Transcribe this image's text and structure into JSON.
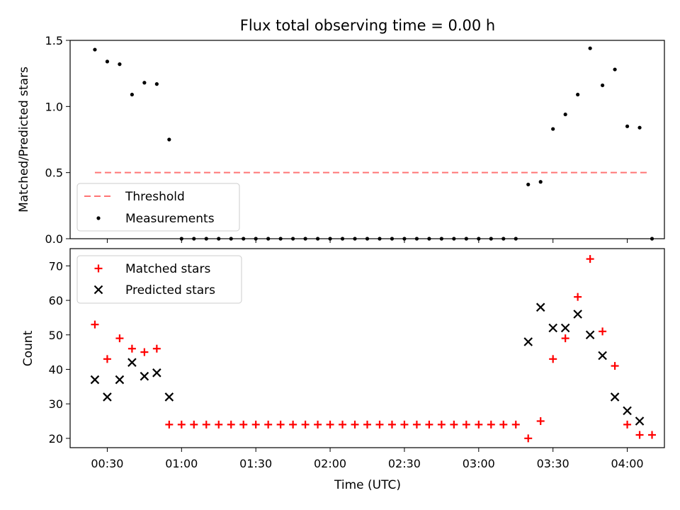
{
  "chart_data": [
    {
      "type": "scatter",
      "title": "Flux total observing time = 0.00 h",
      "xlabel": "",
      "ylabel": "Matched/Predicted stars",
      "ylim": [
        0,
        1.5
      ],
      "yticks": [
        "0.0",
        "0.5",
        "1.0",
        "1.5"
      ],
      "xlim": [
        "00:15",
        "04:15"
      ],
      "legend_position": "lower-left",
      "threshold": {
        "name": "Threshold",
        "value": 0.5,
        "x_start": "00:25",
        "x_end": "04:08",
        "color": "#ff7575",
        "style": "dashed"
      },
      "series": [
        {
          "name": "Measurements",
          "color": "#000000",
          "marker": "dot",
          "points": [
            [
              "00:25",
              1.43
            ],
            [
              "00:30",
              1.34
            ],
            [
              "00:35",
              1.32
            ],
            [
              "00:40",
              1.09
            ],
            [
              "00:45",
              1.18
            ],
            [
              "00:50",
              1.17
            ],
            [
              "00:55",
              0.75
            ],
            [
              "00:60",
              0.0
            ],
            [
              "01:05",
              0.0
            ],
            [
              "01:10",
              0.0
            ],
            [
              "01:15",
              0.0
            ],
            [
              "01:20",
              0.0
            ],
            [
              "01:25",
              0.0
            ],
            [
              "01:30",
              0.0
            ],
            [
              "01:35",
              0.0
            ],
            [
              "01:40",
              0.0
            ],
            [
              "01:45",
              0.0
            ],
            [
              "01:50",
              0.0
            ],
            [
              "01:55",
              0.0
            ],
            [
              "02:00",
              0.0
            ],
            [
              "02:05",
              0.0
            ],
            [
              "02:10",
              0.0
            ],
            [
              "02:15",
              0.0
            ],
            [
              "02:20",
              0.0
            ],
            [
              "02:25",
              0.0
            ],
            [
              "02:30",
              0.0
            ],
            [
              "02:35",
              0.0
            ],
            [
              "02:40",
              0.0
            ],
            [
              "02:45",
              0.0
            ],
            [
              "02:50",
              0.0
            ],
            [
              "02:55",
              0.0
            ],
            [
              "03:00",
              0.0
            ],
            [
              "03:05",
              0.0
            ],
            [
              "03:10",
              0.0
            ],
            [
              "03:15",
              0.0
            ],
            [
              "03:20",
              0.41
            ],
            [
              "03:25",
              0.43
            ],
            [
              "03:30",
              0.83
            ],
            [
              "03:35",
              0.94
            ],
            [
              "03:40",
              1.09
            ],
            [
              "03:45",
              1.44
            ],
            [
              "03:50",
              1.16
            ],
            [
              "03:55",
              1.28
            ],
            [
              "04:00",
              0.85
            ],
            [
              "04:05",
              0.84
            ],
            [
              "04:10",
              0.0
            ]
          ]
        }
      ]
    },
    {
      "type": "scatter",
      "title": "",
      "xlabel": "Time (UTC)",
      "ylabel": "Count",
      "ylim": [
        17.3,
        75
      ],
      "yticks": [
        "20",
        "30",
        "40",
        "50",
        "60",
        "70"
      ],
      "xlim": [
        "00:15",
        "04:15"
      ],
      "xticks": [
        "00:30",
        "01:00",
        "01:30",
        "02:00",
        "02:30",
        "03:00",
        "03:30",
        "04:00"
      ],
      "legend_position": "upper-left",
      "series": [
        {
          "name": "Matched stars",
          "color": "#ff0000",
          "marker": "plus",
          "points": [
            [
              "00:25",
              53
            ],
            [
              "00:30",
              43
            ],
            [
              "00:35",
              49
            ],
            [
              "00:40",
              46
            ],
            [
              "00:45",
              45
            ],
            [
              "00:50",
              46
            ],
            [
              "00:55",
              24
            ],
            [
              "01:00",
              24
            ],
            [
              "01:05",
              24
            ],
            [
              "01:10",
              24
            ],
            [
              "01:15",
              24
            ],
            [
              "01:20",
              24
            ],
            [
              "01:25",
              24
            ],
            [
              "01:30",
              24
            ],
            [
              "01:35",
              24
            ],
            [
              "01:40",
              24
            ],
            [
              "01:45",
              24
            ],
            [
              "01:50",
              24
            ],
            [
              "01:55",
              24
            ],
            [
              "02:00",
              24
            ],
            [
              "02:05",
              24
            ],
            [
              "02:10",
              24
            ],
            [
              "02:15",
              24
            ],
            [
              "02:20",
              24
            ],
            [
              "02:25",
              24
            ],
            [
              "02:30",
              24
            ],
            [
              "02:35",
              24
            ],
            [
              "02:40",
              24
            ],
            [
              "02:45",
              24
            ],
            [
              "02:50",
              24
            ],
            [
              "02:55",
              24
            ],
            [
              "03:00",
              24
            ],
            [
              "03:05",
              24
            ],
            [
              "03:10",
              24
            ],
            [
              "03:15",
              24
            ],
            [
              "03:20",
              20
            ],
            [
              "03:25",
              25
            ],
            [
              "03:30",
              43
            ],
            [
              "03:35",
              49
            ],
            [
              "03:40",
              61
            ],
            [
              "03:45",
              72
            ],
            [
              "03:50",
              51
            ],
            [
              "03:55",
              41
            ],
            [
              "04:00",
              24
            ],
            [
              "04:05",
              21
            ],
            [
              "04:10",
              21
            ]
          ]
        },
        {
          "name": "Predicted stars",
          "color": "#000000",
          "marker": "x",
          "points": [
            [
              "00:25",
              37
            ],
            [
              "00:30",
              32
            ],
            [
              "00:35",
              37
            ],
            [
              "00:40",
              42
            ],
            [
              "00:45",
              38
            ],
            [
              "00:50",
              39
            ],
            [
              "00:55",
              32
            ],
            [
              "03:20",
              48
            ],
            [
              "03:25",
              58
            ],
            [
              "03:30",
              52
            ],
            [
              "03:35",
              52
            ],
            [
              "03:40",
              56
            ],
            [
              "03:45",
              50
            ],
            [
              "03:50",
              44
            ],
            [
              "03:55",
              32
            ],
            [
              "04:00",
              28
            ],
            [
              "04:05",
              25
            ]
          ]
        }
      ]
    }
  ]
}
